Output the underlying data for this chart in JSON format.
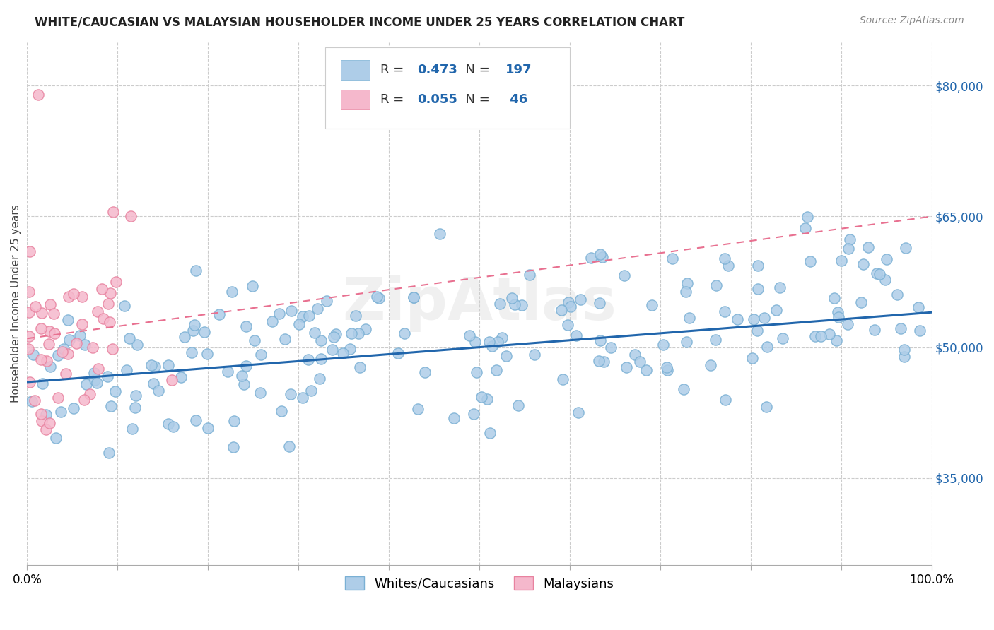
{
  "title": "WHITE/CAUCASIAN VS MALAYSIAN HOUSEHOLDER INCOME UNDER 25 YEARS CORRELATION CHART",
  "source": "Source: ZipAtlas.com",
  "ylabel": "Householder Income Under 25 years",
  "legend_label1": "Whites/Caucasians",
  "legend_label2": "Malaysians",
  "R1": 0.473,
  "N1": 197,
  "R2": 0.055,
  "N2": 46,
  "color1": "#aecde8",
  "color2": "#f5b8cc",
  "color1_edge": "#7ab0d4",
  "color2_edge": "#e8829f",
  "trendline1_color": "#2166ac",
  "trendline2_color": "#e87090",
  "y_tick_values": [
    35000,
    50000,
    65000,
    80000
  ],
  "y_label_color": "#2166ac",
  "title_fontsize": 12,
  "source_fontsize": 10,
  "watermark": "ZipAtlas",
  "watermark_color": "#d0d0d0",
  "background_color": "#ffffff",
  "xlim": [
    0,
    1
  ],
  "ylim": [
    25000,
    85000
  ],
  "trendline1_y0": 46000,
  "trendline1_y1": 54000,
  "trendline2_y0": 51000,
  "trendline2_y1": 65000,
  "seed1": 42,
  "seed2": 7
}
